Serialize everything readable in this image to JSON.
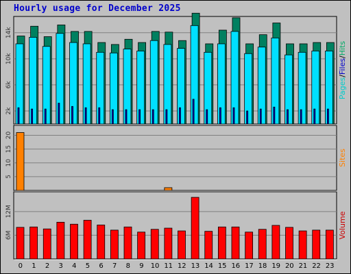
{
  "chart_data": {
    "title": "Hourly usage for December 2025",
    "type": "bar",
    "categories": [
      "0",
      "1",
      "2",
      "3",
      "4",
      "5",
      "6",
      "7",
      "8",
      "9",
      "10",
      "11",
      "12",
      "13",
      "14",
      "15",
      "16",
      "17",
      "18",
      "19",
      "20",
      "21",
      "22",
      "23"
    ],
    "panels": [
      {
        "name": "hits-files-pages",
        "ylabel_parts": [
          "Pages",
          "/",
          "Files",
          "/",
          "Hits"
        ],
        "ylabel_colors": [
          "#00cccc",
          "#000000",
          "#0000cc",
          "#000000",
          "#00aa66"
        ],
        "yticks": [
          {
            "v": 2000,
            "label": "2k"
          },
          {
            "v": 6000,
            "label": "6k"
          },
          {
            "v": 10000,
            "label": "10k"
          },
          {
            "v": 14000,
            "label": "14k"
          }
        ],
        "ylim": [
          0,
          16500
        ],
        "series": [
          {
            "name": "Hits",
            "color": "#008060",
            "values": [
              13500,
              15000,
              13400,
              15200,
              14200,
              14200,
              12500,
              12200,
              13000,
              12500,
              14200,
              14100,
              12800,
              17000,
              12300,
              14400,
              16300,
              12300,
              13700,
              15500,
              12300,
              12300,
              12500,
              12500
            ]
          },
          {
            "name": "Files",
            "color": "#00e0ff",
            "values": [
              12300,
              13300,
              11900,
              13900,
              12500,
              12300,
              11000,
              10900,
              11500,
              11200,
              12800,
              12200,
              11600,
              15100,
              11000,
              12300,
              14200,
              10800,
              11800,
              13200,
              10600,
              11000,
              11200,
              11200
            ]
          },
          {
            "name": "Pages",
            "color": "#0000cc",
            "values": [
              2500,
              2300,
              2300,
              3200,
              2700,
              2500,
              2500,
              2200,
              2200,
              2200,
              2200,
              2200,
              2500,
              3800,
              2200,
              2500,
              2500,
              2000,
              2300,
              2600,
              2200,
              2200,
              2300,
              2300
            ]
          }
        ]
      },
      {
        "name": "sites",
        "ylabel_parts": [
          "Sites"
        ],
        "ylabel_colors": [
          "#ff8000"
        ],
        "yticks": [
          {
            "v": 5,
            "label": "5"
          },
          {
            "v": 10,
            "label": "10"
          },
          {
            "v": 15,
            "label": "15"
          },
          {
            "v": 20,
            "label": "20"
          }
        ],
        "ylim": [
          0,
          23.6
        ],
        "series": [
          {
            "name": "Sites",
            "color": "#ff8000",
            "values": [
              21,
              0,
              0,
              0,
              0,
              0,
              0,
              0,
              0,
              0,
              0,
              1,
              0,
              0,
              0,
              0,
              0,
              0,
              0,
              0,
              0,
              0,
              0,
              0
            ]
          }
        ]
      },
      {
        "name": "volume",
        "ylabel_parts": [
          "Volume"
        ],
        "ylabel_colors": [
          "#cc0000"
        ],
        "yticks": [
          {
            "v": 6000000,
            "label": "6M"
          },
          {
            "v": 12000000,
            "label": "12M"
          }
        ],
        "ylim": [
          0,
          17000000
        ],
        "series": [
          {
            "name": "Volume",
            "color": "#ff0000",
            "values": [
              8000000,
              8100000,
              7600000,
              9300000,
              8800000,
              9800000,
              8600000,
              7300000,
              8100000,
              6800000,
              7500000,
              7800000,
              7100000,
              15600000,
              7000000,
              8100000,
              8100000,
              6800000,
              7500000,
              8500000,
              8000000,
              7100000,
              7300000,
              7300000
            ]
          }
        ]
      }
    ]
  }
}
